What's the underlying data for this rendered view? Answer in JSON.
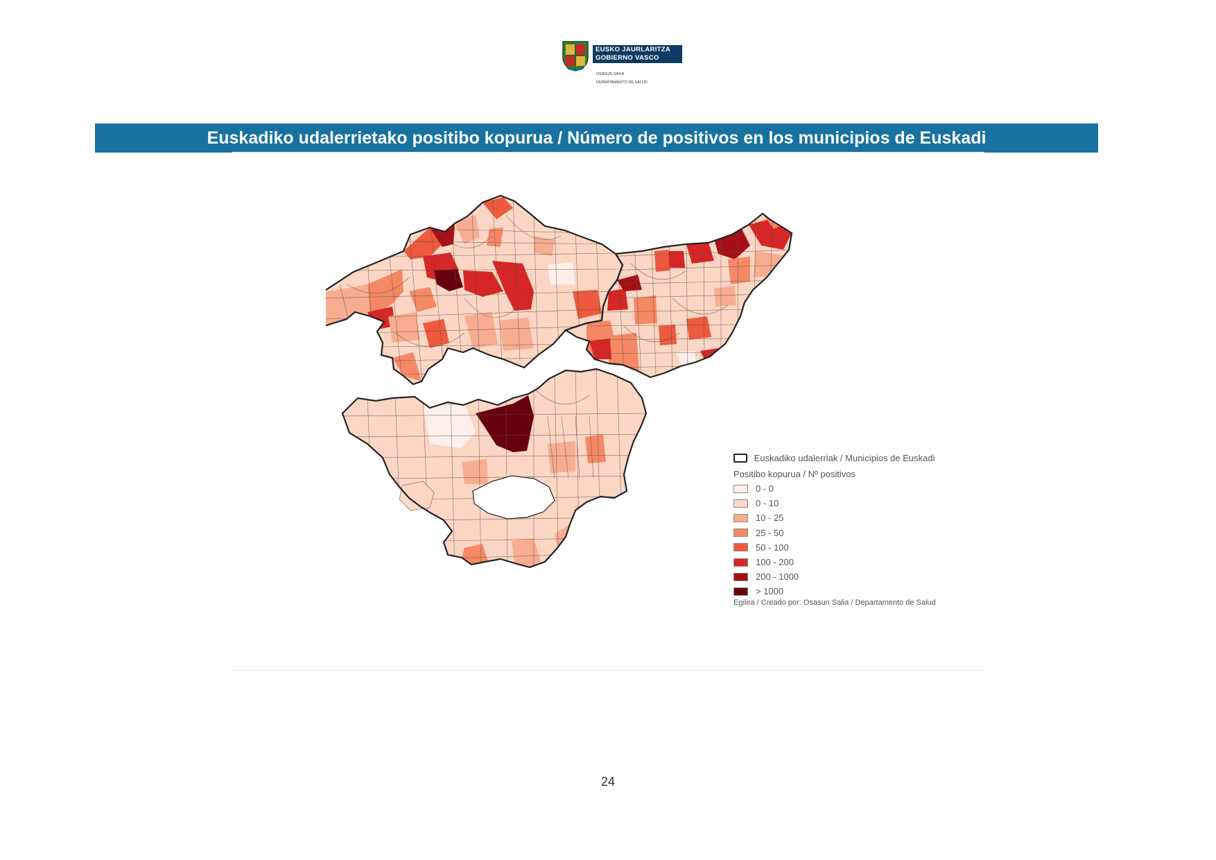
{
  "logo": {
    "line1": "EUSKO JAURLARITZA",
    "line2": "GOBIERNO VASCO",
    "sub1": "OSASUN SAILA",
    "sub2": "DEPARTAMENTO DE SALUD",
    "colors": {
      "banner": "#0e3a63",
      "shield_green": "#2f7d32",
      "shield_red": "#c62828",
      "shield_gold": "#e0b43a"
    }
  },
  "title": "Euskadiko udalerrietako positibo kopurua / Número de positivos en los municipios de Euskadi",
  "title_bar_color": "#1872a0",
  "map": {
    "region_border_color": "#222222",
    "legend": {
      "border_label": "Euskadiko udalerriak / Municipios de Euskadi",
      "title": "Positibo kopurua / Nº positivos",
      "classes": [
        {
          "label": "0 - 0",
          "color": "#fdf0ea"
        },
        {
          "label": "0 - 10",
          "color": "#fbd6c4"
        },
        {
          "label": "10 - 25",
          "color": "#f8ad91"
        },
        {
          "label": "25 - 50",
          "color": "#f58966"
        },
        {
          "label": "50 - 100",
          "color": "#ee5a3e"
        },
        {
          "label": "100 - 200",
          "color": "#d72626"
        },
        {
          "label": "200 - 1000",
          "color": "#a70f16"
        },
        {
          "label": "> 1000",
          "color": "#67000d"
        }
      ],
      "credit": "Egilea / Creado por: Osasun Salia / Departamento de Salud"
    }
  },
  "page_number": "24"
}
